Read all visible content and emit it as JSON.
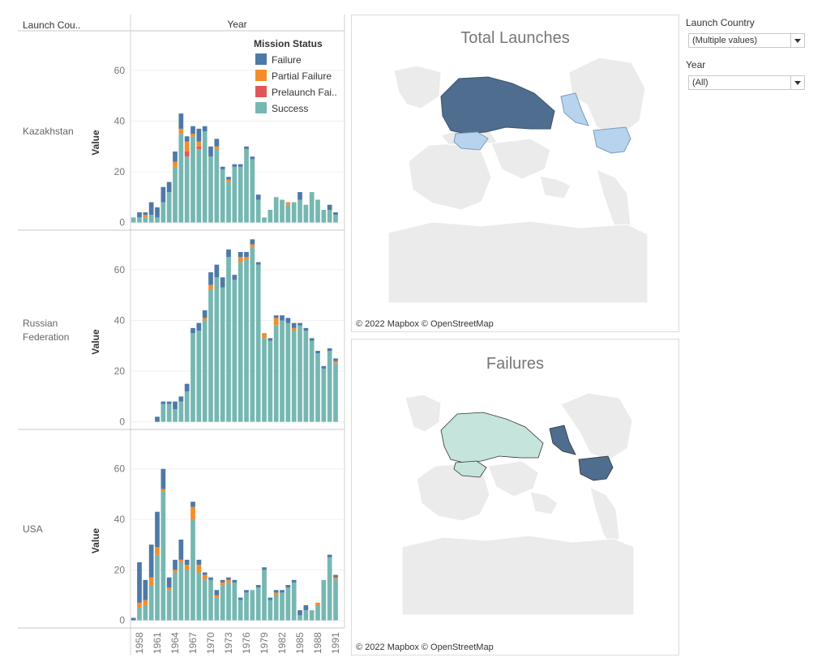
{
  "header": {
    "row_dim_label": "Launch Cou..",
    "col_dim_label": "Year"
  },
  "legend": {
    "title": "Mission Status",
    "items": [
      {
        "label": "Failure",
        "color": "#4e79a7"
      },
      {
        "label": "Partial Failure",
        "color": "#f28e2b"
      },
      {
        "label": "Prelaunch Fai..",
        "color": "#e15759"
      },
      {
        "label": "Success",
        "color": "#76b7b2"
      }
    ]
  },
  "chart_data": {
    "type": "bar",
    "stacked": true,
    "years": [
      1957,
      1958,
      1959,
      1960,
      1961,
      1962,
      1963,
      1964,
      1965,
      1966,
      1967,
      1968,
      1969,
      1970,
      1971,
      1972,
      1973,
      1974,
      1975,
      1976,
      1977,
      1978,
      1979,
      1980,
      1981,
      1982,
      1983,
      1984,
      1985,
      1986,
      1987,
      1988,
      1989,
      1990,
      1991,
      1992
    ],
    "x_tick_labels": [
      "1958",
      "1961",
      "1964",
      "1967",
      "1970",
      "1973",
      "1976",
      "1979",
      "1982",
      "1985",
      "1988",
      "1991"
    ],
    "ylabel": "Value",
    "stack_order": [
      "Success",
      "Prelaunch Failure",
      "Partial Failure",
      "Failure"
    ],
    "panels": [
      {
        "country": "Kazakhstan",
        "yticks": [
          0,
          20,
          40,
          60
        ],
        "ylim": [
          -3,
          75
        ],
        "series": [
          {
            "name": "Failure",
            "values": [
              0,
              2,
              1,
              5,
              4,
              6,
              4,
              4,
              6,
              2,
              3,
              5,
              2,
              4,
              3,
              1,
              1,
              1,
              1,
              1,
              1,
              2,
              0,
              0,
              0,
              0,
              0,
              0,
              3,
              0,
              0,
              0,
              0,
              2,
              1,
              0
            ]
          },
          {
            "name": "Partial Failure",
            "values": [
              0,
              0,
              1,
              0,
              0,
              0,
              0,
              2,
              2,
              4,
              1,
              2,
              0,
              0,
              1,
              0,
              1,
              0,
              0,
              0,
              0,
              0,
              0,
              0,
              0,
              0,
              1,
              0,
              0,
              0,
              0,
              0,
              0,
              0,
              0,
              0
            ]
          },
          {
            "name": "Prelaunch Failure",
            "values": [
              0,
              0,
              0,
              0,
              0,
              0,
              0,
              0,
              0,
              2,
              0,
              1,
              0,
              0,
              0,
              0,
              0,
              0,
              0,
              0,
              0,
              0,
              0,
              0,
              0,
              0,
              0,
              0,
              0,
              0,
              0,
              0,
              0,
              0,
              0,
              0
            ]
          },
          {
            "name": "Success",
            "values": [
              2,
              2,
              2,
              3,
              2,
              8,
              12,
              22,
              35,
              26,
              34,
              29,
              36,
              26,
              29,
              21,
              16,
              22,
              22,
              29,
              25,
              9,
              2,
              5,
              10,
              9,
              7,
              8,
              9,
              7,
              12,
              9,
              5,
              5,
              3,
              0
            ]
          }
        ]
      },
      {
        "country": "Russian Federation",
        "yticks": [
          0,
          20,
          40,
          60
        ],
        "ylim": [
          -3,
          75
        ],
        "series": [
          {
            "name": "Failure",
            "values": [
              0,
              0,
              0,
              0,
              2,
              1,
              1,
              3,
              2,
              3,
              2,
              3,
              3,
              5,
              5,
              4,
              3,
              2,
              2,
              2,
              2,
              1,
              0,
              1,
              1,
              2,
              2,
              2,
              1,
              1,
              1,
              1,
              1,
              1,
              1,
              0
            ]
          },
          {
            "name": "Partial Failure",
            "values": [
              0,
              0,
              0,
              0,
              0,
              0,
              0,
              0,
              0,
              0,
              0,
              0,
              1,
              2,
              0,
              0,
              0,
              0,
              2,
              1,
              1,
              0,
              2,
              0,
              3,
              0,
              0,
              1,
              0,
              0,
              0,
              0,
              0,
              0,
              1,
              0
            ]
          },
          {
            "name": "Prelaunch Failure",
            "values": [
              0,
              0,
              0,
              0,
              0,
              0,
              0,
              0,
              0,
              0,
              0,
              0,
              0,
              0,
              0,
              0,
              0,
              0,
              0,
              0,
              0,
              0,
              0,
              0,
              0,
              0,
              0,
              0,
              0,
              0,
              0,
              0,
              0,
              0,
              0,
              0
            ]
          },
          {
            "name": "Success",
            "values": [
              0,
              0,
              0,
              0,
              0,
              7,
              7,
              5,
              8,
              12,
              35,
              36,
              40,
              52,
              57,
              53,
              65,
              56,
              63,
              64,
              69,
              62,
              33,
              32,
              38,
              40,
              39,
              36,
              38,
              36,
              32,
              27,
              21,
              28,
              23,
              0
            ]
          }
        ]
      },
      {
        "country": "USA",
        "yticks": [
          0,
          20,
          40,
          60
        ],
        "ylim": [
          -3,
          75
        ],
        "series": [
          {
            "name": "Failure",
            "values": [
              1,
              16,
              8,
              13,
              14,
              8,
              4,
              4,
              8,
              2,
              2,
              2,
              1,
              1,
              2,
              1,
              1,
              1,
              1,
              1,
              0,
              1,
              1,
              1,
              1,
              1,
              1,
              1,
              2,
              2,
              0,
              0,
              0,
              1,
              1,
              0
            ]
          },
          {
            "name": "Partial Failure",
            "values": [
              0,
              2,
              2,
              3,
              3,
              1,
              1,
              1,
              1,
              2,
              5,
              3,
              2,
              0,
              1,
              1,
              1,
              0,
              0,
              0,
              0,
              0,
              0,
              0,
              1,
              0,
              0,
              0,
              0,
              0,
              0,
              1,
              0,
              0,
              1,
              0
            ]
          },
          {
            "name": "Prelaunch Failure",
            "values": [
              0,
              0,
              0,
              0,
              0,
              0,
              0,
              0,
              0,
              0,
              0,
              0,
              0,
              0,
              0,
              0,
              0,
              0,
              0,
              0,
              0,
              0,
              0,
              0,
              0,
              0,
              0,
              0,
              0,
              0,
              0,
              0,
              0,
              0,
              0,
              0
            ]
          },
          {
            "name": "Success",
            "values": [
              0,
              5,
              6,
              14,
              26,
              51,
              12,
              19,
              23,
              20,
              40,
              19,
              16,
              16,
              9,
              14,
              15,
              15,
              8,
              11,
              12,
              13,
              20,
              8,
              10,
              11,
              13,
              15,
              2,
              4,
              4,
              6,
              16,
              25,
              16,
              0
            ]
          }
        ]
      }
    ]
  },
  "maps": [
    {
      "title": "Total Launches",
      "attribution": "© 2022 Mapbox © OpenStreetMap",
      "highlighted": [
        {
          "region": "Russian Federation",
          "color": "#4e6d8f"
        },
        {
          "region": "Kazakhstan",
          "color": "#b7d3ee"
        },
        {
          "region": "Alaska",
          "color": "#b7d3ee"
        },
        {
          "region": "USA",
          "color": "#b7d3ee"
        }
      ]
    },
    {
      "title": "Failures",
      "attribution": "© 2022 Mapbox © OpenStreetMap",
      "highlighted": [
        {
          "region": "Russian Federation",
          "color": "#c5e4dc"
        },
        {
          "region": "Kazakhstan",
          "color": "#c5e4dc"
        },
        {
          "region": "Alaska",
          "color": "#4e6d8f"
        },
        {
          "region": "USA",
          "color": "#4e6d8f"
        }
      ]
    }
  ],
  "filters": [
    {
      "label": "Launch Country",
      "value": "(Multiple values)"
    },
    {
      "label": "Year",
      "value": "(All)"
    }
  ]
}
